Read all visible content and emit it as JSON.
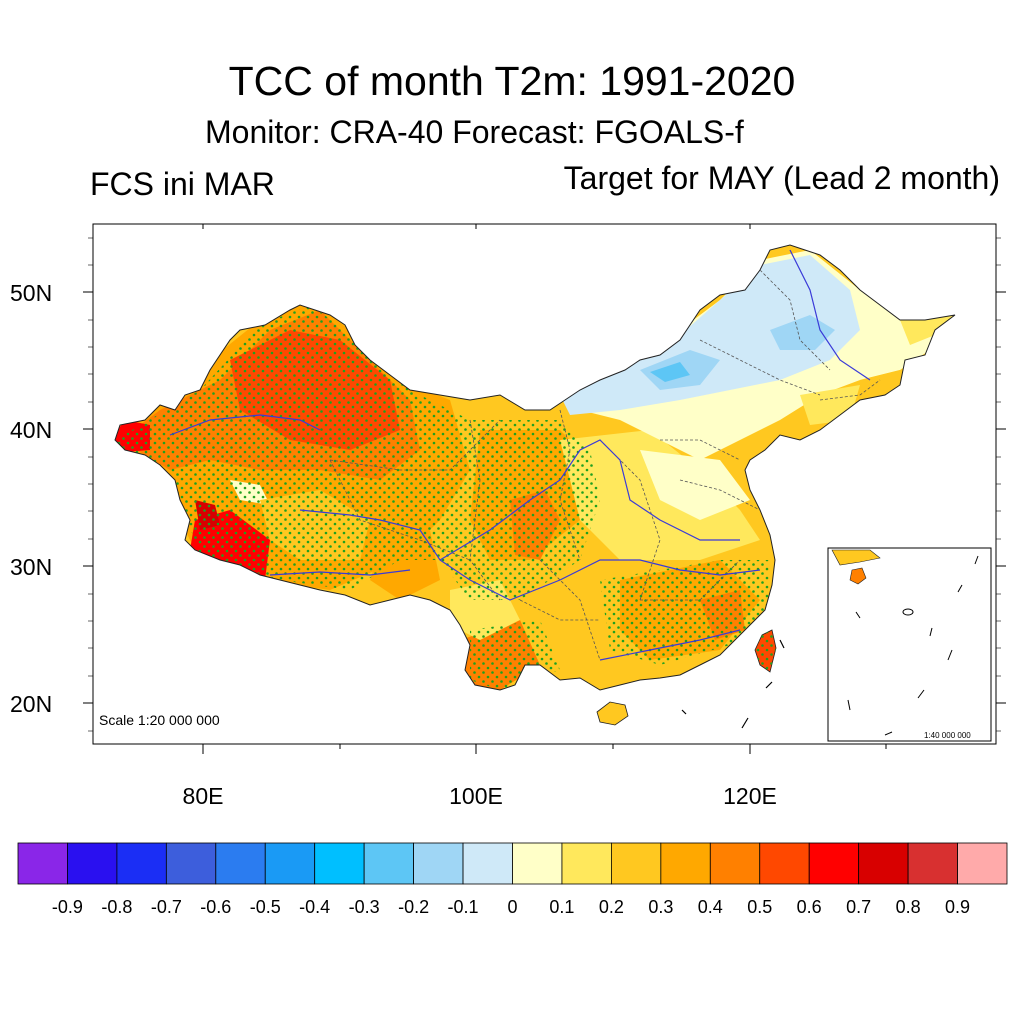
{
  "title": "TCC of month T2m: 1991-2020",
  "subtitle": "Monitor: CRA-40   Forecast: FGOALS-f",
  "left_label": "FCS ini MAR",
  "right_label": "Target for MAY (Lead 2 month)",
  "latitude_labels": [
    "50N",
    "40N",
    "30N",
    "20N"
  ],
  "longitude_labels": [
    "80E",
    "100E",
    "120E"
  ],
  "scale_label": "Scale 1:20 000 000",
  "inset_scale_label": "1:40 000 000",
  "colorbar": {
    "colors": [
      "#8a26e8",
      "#2a10f0",
      "#1b2ef5",
      "#3d5edc",
      "#2b7cf0",
      "#1a9af5",
      "#00bfff",
      "#5dc6f5",
      "#9fd6f5",
      "#cfe9f8",
      "#ffffc8",
      "#ffe85c",
      "#ffc820",
      "#ffa800",
      "#ff8000",
      "#ff4800",
      "#ff0000",
      "#d80000",
      "#d83030",
      "#ffaaaa"
    ],
    "labels": [
      "-0.9",
      "-0.8",
      "-0.7",
      "-0.6",
      "-0.5",
      "-0.4",
      "-0.3",
      "-0.2",
      "-0.1",
      "0",
      "0.1",
      "0.2",
      "0.3",
      "0.4",
      "0.5",
      "0.6",
      "0.7",
      "0.8",
      "0.9"
    ]
  }
}
